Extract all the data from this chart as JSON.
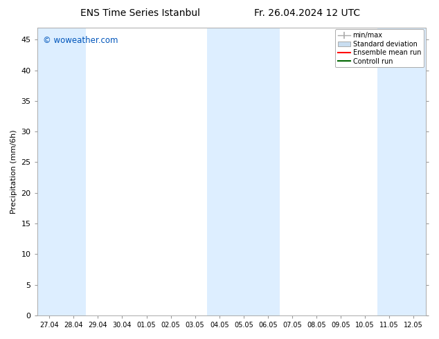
{
  "title": "ENS Time Series Istanbul",
  "title2": "Fr. 26.04.2024 12 UTC",
  "ylabel": "Precipitation (mm/6h)",
  "watermark": "© woweather.com",
  "watermark_color": "#0055bb",
  "background_color": "#ffffff",
  "plot_bg_color": "#ffffff",
  "shaded_band_color": "#ddeeff",
  "ylim": [
    0,
    47
  ],
  "yticks": [
    0,
    5,
    10,
    15,
    20,
    25,
    30,
    35,
    40,
    45
  ],
  "x_labels": [
    "27.04",
    "28.04",
    "29.04",
    "30.04",
    "01.05",
    "02.05",
    "03.05",
    "04.05",
    "05.05",
    "06.05",
    "07.05",
    "08.05",
    "09.05",
    "10.05",
    "11.05",
    "12.05"
  ],
  "n_cols": 16,
  "shaded_ranges": [
    [
      0,
      1
    ],
    [
      7,
      9
    ],
    [
      14,
      15
    ]
  ],
  "legend_labels": [
    "min/max",
    "Standard deviation",
    "Ensemble mean run",
    "Controll run"
  ]
}
